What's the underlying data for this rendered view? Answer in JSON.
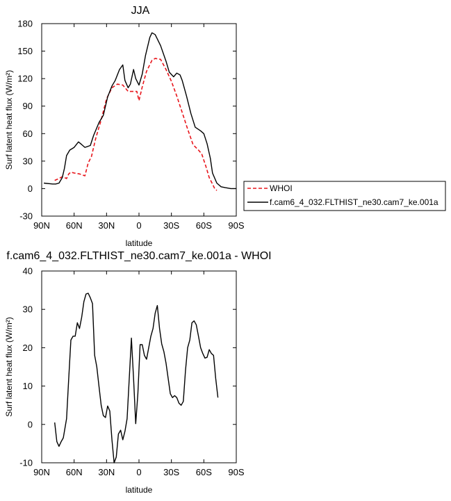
{
  "chart_data": [
    {
      "type": "line",
      "title": "JJA",
      "xlabel": "latitude",
      "ylabel": "Surf latent heat flux (W/m²)",
      "xlim": [
        90,
        -90
      ],
      "ylim": [
        -30,
        180
      ],
      "x_ticks": [
        90,
        60,
        30,
        0,
        -30,
        -60,
        -90
      ],
      "x_tick_labels": [
        "90N",
        "60N",
        "30N",
        "0",
        "30S",
        "60S",
        "90S"
      ],
      "y_ticks": [
        -30,
        0,
        30,
        60,
        90,
        120,
        150,
        180
      ],
      "y_tick_labels": [
        "-30",
        "0",
        "30",
        "60",
        "90",
        "120",
        "150",
        "180"
      ],
      "legend": {
        "placement": "right",
        "entries": [
          "WHOI",
          "f.cam6_4_032.FLTHIST_ne30.cam7_ke.001a"
        ]
      },
      "series": [
        {
          "name": "WHOI",
          "color": "#e8141a",
          "dash": true,
          "x": [
            78,
            74,
            71,
            67,
            65,
            63,
            60,
            55,
            50,
            47,
            44,
            40,
            35,
            30,
            25,
            20,
            15,
            10,
            5,
            2,
            0,
            -3,
            -7,
            -12,
            -15,
            -20,
            -25,
            -30,
            -35,
            -40,
            -45,
            -50,
            -55,
            -58,
            -62,
            -65,
            -68,
            -70,
            -72
          ],
          "y": [
            9,
            11,
            13,
            11,
            16,
            18,
            17,
            16,
            14,
            28,
            35,
            55,
            75,
            98,
            110,
            114,
            113,
            106,
            106,
            106,
            96,
            111,
            128,
            140,
            142,
            141,
            130,
            117,
            101,
            83,
            65,
            48,
            42,
            38,
            24,
            12,
            5,
            0,
            -2
          ]
        },
        {
          "name": "f.cam6_4_032.FLTHIST_ne30.cam7_ke.001a",
          "color": "#000000",
          "dash": false,
          "x": [
            88,
            80,
            77,
            74,
            71,
            69,
            67,
            64,
            60,
            56,
            53,
            50,
            45,
            42,
            37,
            33,
            29,
            25,
            22,
            18,
            15,
            13,
            10,
            8,
            5,
            3,
            0,
            -3,
            -6,
            -10,
            -12,
            -15,
            -20,
            -25,
            -28,
            -32,
            -35,
            -38,
            -40,
            -44,
            -48,
            -52,
            -57,
            -60,
            -63,
            -66,
            -68,
            -72,
            -76,
            -80,
            -85,
            -90
          ],
          "y": [
            6,
            5,
            5,
            6,
            12,
            22,
            36,
            42,
            45,
            51,
            48,
            45,
            47,
            58,
            72,
            80,
            100,
            112,
            118,
            130,
            135,
            118,
            110,
            114,
            130,
            120,
            113,
            125,
            145,
            165,
            170,
            168,
            156,
            139,
            127,
            122,
            126,
            124,
            118,
            101,
            82,
            67,
            63,
            60,
            49,
            33,
            17,
            6,
            2,
            1,
            0,
            0
          ]
        }
      ]
    },
    {
      "type": "line",
      "title": "f.cam6_4_032.FLTHIST_ne30.cam7_ke.001a - WHOI",
      "xlabel": "latitude",
      "ylabel": "Surf latent heat flux (W/m²)",
      "xlim": [
        90,
        -90
      ],
      "ylim": [
        -10,
        40
      ],
      "x_ticks": [
        90,
        60,
        30,
        0,
        -30,
        -60,
        -90
      ],
      "x_tick_labels": [
        "90N",
        "60N",
        "30N",
        "0",
        "30S",
        "60S",
        "90S"
      ],
      "y_ticks": [
        -10,
        0,
        10,
        20,
        30,
        40
      ],
      "y_tick_labels": [
        "-10",
        "0",
        "10",
        "20",
        "30",
        "40"
      ],
      "series": [
        {
          "color": "#000000",
          "dash": false,
          "x": [
            78,
            76,
            74,
            72,
            70,
            67,
            65,
            63,
            61,
            59,
            57,
            55,
            53,
            51,
            49,
            47,
            45,
            43,
            41,
            39,
            37,
            35,
            33,
            31,
            29,
            27,
            25,
            23,
            21,
            19,
            17,
            15,
            13,
            11,
            9,
            7,
            5,
            3,
            1,
            -1,
            -3,
            -5,
            -7,
            -9,
            -11,
            -13,
            -15,
            -17,
            -19,
            -21,
            -23,
            -25,
            -27,
            -29,
            -31,
            -33,
            -35,
            -37,
            -39,
            -41,
            -43,
            -45,
            -47,
            -49,
            -51,
            -53,
            -55,
            -57,
            -59,
            -61,
            -63,
            -65,
            -67,
            -69,
            -71,
            -73
          ],
          "y": [
            0.5,
            -4.5,
            -5.7,
            -4.5,
            -3.5,
            1.5,
            12,
            22,
            23,
            23,
            26.5,
            25,
            28,
            32,
            34,
            34.2,
            33,
            31.5,
            18,
            15,
            10,
            5,
            2.3,
            1.8,
            4.8,
            3.5,
            -4,
            -10,
            -8.5,
            -2.5,
            -1.5,
            -4,
            -1.8,
            1.5,
            12,
            22.5,
            12,
            0.2,
            8,
            20.8,
            20.8,
            18,
            17,
            20,
            23,
            25,
            29,
            31,
            25,
            21,
            19,
            16,
            12,
            8,
            7,
            7.5,
            7,
            5.5,
            5,
            6,
            14,
            20,
            22,
            26.5,
            27,
            26,
            23,
            20,
            18.5,
            17.3,
            17.5,
            19.5,
            18.5,
            18,
            12,
            7
          ]
        }
      ]
    }
  ]
}
